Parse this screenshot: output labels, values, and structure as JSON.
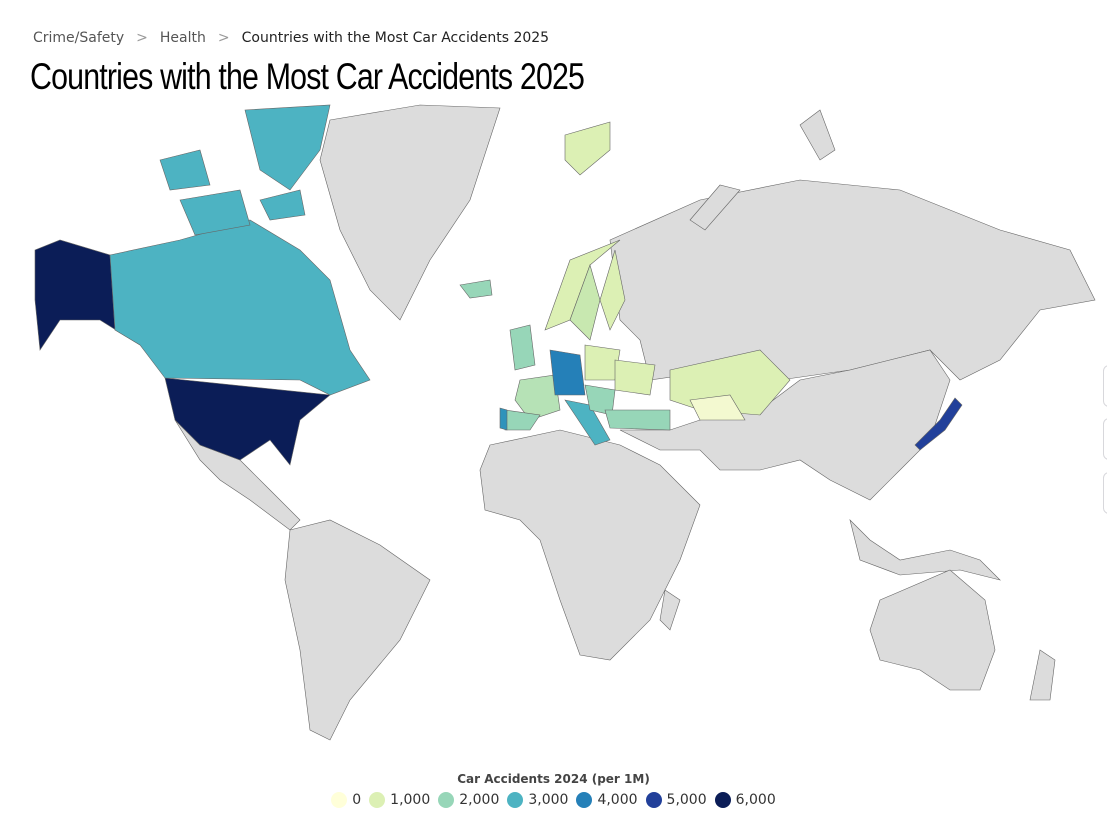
{
  "breadcrumb": {
    "items": [
      "Crime/Safety",
      "Health",
      "Countries with the Most Car Accidents 2025"
    ],
    "separator": ">"
  },
  "title": "Countries with the Most Car Accidents 2025",
  "legend": {
    "title": "Car Accidents 2024 (per 1M)",
    "items": [
      {
        "label": "0",
        "color": "#ffffd9"
      },
      {
        "label": "1,000",
        "color": "#dcf0b4"
      },
      {
        "label": "2,000",
        "color": "#97d6b8"
      },
      {
        "label": "3,000",
        "color": "#4db3c2"
      },
      {
        "label": "4,000",
        "color": "#2580b8"
      },
      {
        "label": "5,000",
        "color": "#22409a"
      },
      {
        "label": "6,000",
        "color": "#0b1d57"
      }
    ]
  },
  "map": {
    "no_data_color": "#dcdcdc",
    "shaded_countries": [
      {
        "country": "United States",
        "value": 6000
      },
      {
        "country": "Japan",
        "value": 5000
      },
      {
        "country": "Canada",
        "value": 3000
      },
      {
        "country": "Germany",
        "value": 4000
      },
      {
        "country": "Italy",
        "value": 3000
      },
      {
        "country": "Portugal",
        "value": 3500
      },
      {
        "country": "France",
        "value": 1800
      },
      {
        "country": "Spain",
        "value": 2000
      },
      {
        "country": "United Kingdom",
        "value": 1800
      },
      {
        "country": "Iceland",
        "value": 2000
      },
      {
        "country": "Turkey",
        "value": 2000
      },
      {
        "country": "Sweden",
        "value": 1200
      },
      {
        "country": "Norway",
        "value": 800
      },
      {
        "country": "Finland",
        "value": 700
      },
      {
        "country": "Poland",
        "value": 800
      },
      {
        "country": "Ukraine",
        "value": 700
      },
      {
        "country": "Kazakhstan",
        "value": 800
      },
      {
        "country": "Uzbekistan",
        "value": 300
      }
    ]
  }
}
